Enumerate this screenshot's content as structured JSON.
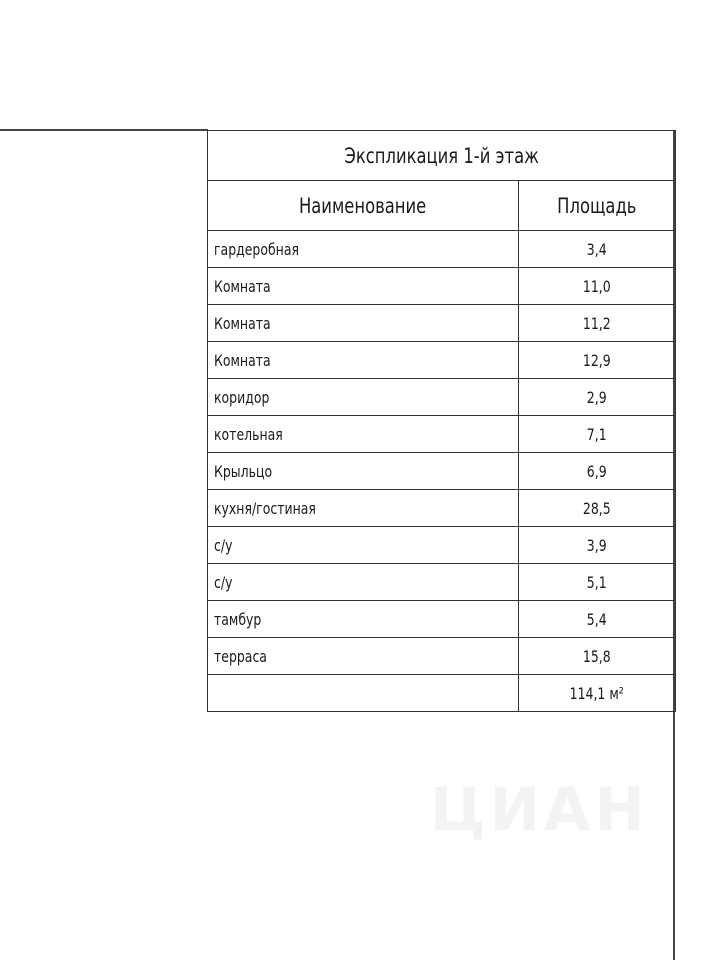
{
  "table": {
    "title": "Экспликация 1-й этаж",
    "headers": [
      "Наименование",
      "Площадь"
    ],
    "rows": [
      {
        "name": "гардеробная",
        "area": "3,4"
      },
      {
        "name": "Комната",
        "area": "11,0"
      },
      {
        "name": "Комната",
        "area": "11,2"
      },
      {
        "name": "Комната",
        "area": "12,9"
      },
      {
        "name": "коридор",
        "area": "2,9"
      },
      {
        "name": "котельная",
        "area": "7,1"
      },
      {
        "name": "Крыльцо",
        "area": "6,9"
      },
      {
        "name": "кухня/гостиная",
        "area": "28,5"
      },
      {
        "name": "с/у",
        "area": "3,9"
      },
      {
        "name": "с/у",
        "area": "5,1"
      },
      {
        "name": "тамбур",
        "area": "5,4"
      },
      {
        "name": "терраса",
        "area": "15,8"
      }
    ],
    "total": "114,1 м²"
  },
  "watermark": {
    "text": "ЦИАН"
  }
}
